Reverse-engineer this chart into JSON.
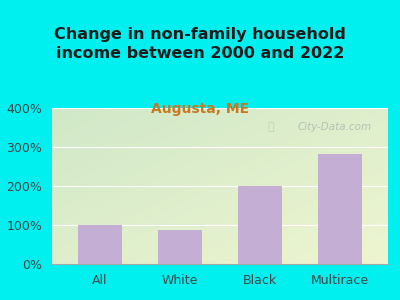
{
  "title": "Change in non-family household\nincome between 2000 and 2022",
  "subtitle": "Augusta, ME",
  "categories": [
    "All",
    "White",
    "Black",
    "Multirace"
  ],
  "values": [
    100,
    88,
    200,
    283
  ],
  "bar_color": "#c4aed4",
  "title_fontsize": 11.5,
  "subtitle_fontsize": 10,
  "subtitle_color": "#c87820",
  "title_color": "#1a1a1a",
  "bg_color": "#00f0f0",
  "plot_bg_top_left": "#d0e8c8",
  "plot_bg_bottom_right": "#eef5d0",
  "ylim": [
    0,
    400
  ],
  "yticks": [
    0,
    100,
    200,
    300,
    400
  ],
  "ytick_labels": [
    "0%",
    "100%",
    "200%",
    "300%",
    "400%"
  ],
  "watermark": "City-Data.com",
  "watermark_color": "#b0b8b0",
  "axis_label_color": "#444444",
  "tick_label_fontsize": 9
}
